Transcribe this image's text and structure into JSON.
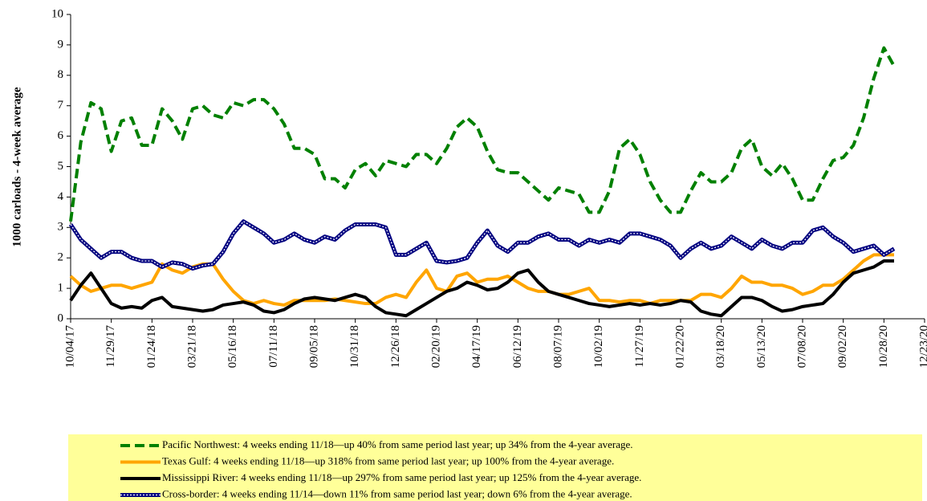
{
  "chart_data": {
    "type": "line",
    "y_label": "1000 carloads - 4-week average",
    "categories": [
      "10/04/17",
      null,
      null,
      null,
      "11/29/17",
      null,
      null,
      null,
      "01/24/18",
      null,
      null,
      null,
      "03/21/18",
      null,
      null,
      null,
      "05/16/18",
      null,
      null,
      null,
      "07/11/18",
      null,
      null,
      null,
      "09/05/18",
      null,
      null,
      null,
      "10/31/18",
      null,
      null,
      null,
      "12/26/18",
      null,
      null,
      null,
      "02/20/19",
      null,
      null,
      null,
      "04/17/19",
      null,
      null,
      null,
      "06/12/19",
      null,
      null,
      null,
      "08/07/19",
      null,
      null,
      null,
      "10/02/19",
      null,
      null,
      null,
      "11/27/19",
      null,
      null,
      null,
      "01/22/20",
      null,
      null,
      null,
      "03/18/20",
      null,
      null,
      null,
      "05/13/20",
      null,
      null,
      null,
      "07/08/20",
      null,
      null,
      null,
      "09/02/20",
      null,
      null,
      null,
      "10/28/20",
      null,
      null,
      null,
      "12/23/20"
    ],
    "series": [
      {
        "name": "Pacific Northwest:  4 weeks ending 11/18—up 40% from same period last year; up 34% from the 4-year average.",
        "color": "#008000",
        "style": "dashed",
        "values": [
          3.2,
          5.8,
          7.1,
          6.9,
          5.5,
          6.5,
          6.6,
          5.7,
          5.7,
          6.9,
          6.5,
          5.9,
          6.9,
          7.0,
          6.7,
          6.6,
          7.1,
          7.0,
          7.2,
          7.2,
          6.9,
          6.4,
          5.6,
          5.6,
          5.4,
          4.6,
          4.6,
          4.3,
          4.9,
          5.1,
          4.7,
          5.2,
          5.1,
          5.0,
          5.4,
          5.4,
          5.1,
          5.6,
          6.3,
          6.6,
          6.3,
          5.5,
          4.9,
          4.8,
          4.8,
          4.5,
          4.2,
          3.9,
          4.3,
          4.2,
          4.1,
          3.5,
          3.5,
          4.2,
          5.6,
          5.9,
          5.4,
          4.5,
          3.9,
          3.5,
          3.5,
          4.2,
          4.8,
          4.5,
          4.5,
          4.8,
          5.6,
          5.9,
          5.0,
          4.7,
          5.1,
          4.6,
          3.9,
          3.9,
          4.6,
          5.2,
          5.3,
          5.7,
          6.6,
          7.9,
          8.9,
          8.3,
          null,
          null,
          null
        ]
      },
      {
        "name": "Texas Gulf:  4 weeks ending 11/18—up 318% from same period last year; up 100% from the 4-year average.",
        "color": "#ffa500",
        "style": "solid",
        "values": [
          1.4,
          1.1,
          0.9,
          1.0,
          1.1,
          1.1,
          1.0,
          1.1,
          1.2,
          1.8,
          1.6,
          1.5,
          1.7,
          1.8,
          1.8,
          1.3,
          0.9,
          0.6,
          0.5,
          0.6,
          0.5,
          0.45,
          0.6,
          0.6,
          0.6,
          0.6,
          0.65,
          0.6,
          0.55,
          0.5,
          0.5,
          0.7,
          0.8,
          0.7,
          1.2,
          1.6,
          1.0,
          0.9,
          1.4,
          1.5,
          1.2,
          1.3,
          1.3,
          1.4,
          1.2,
          1.0,
          0.9,
          0.9,
          0.8,
          0.8,
          0.9,
          1.0,
          0.6,
          0.6,
          0.55,
          0.6,
          0.6,
          0.5,
          0.6,
          0.6,
          0.6,
          0.6,
          0.8,
          0.8,
          0.7,
          1.0,
          1.4,
          1.2,
          1.2,
          1.1,
          1.1,
          1.0,
          0.8,
          0.9,
          1.1,
          1.1,
          1.3,
          1.6,
          1.9,
          2.1,
          2.1,
          2.1,
          null,
          null,
          null
        ]
      },
      {
        "name": "Mississippi River:  4 weeks ending 11/18—up 297% from same period last year; up 125% from the 4-year average.",
        "color": "#000000",
        "style": "solid",
        "values": [
          0.6,
          1.1,
          1.5,
          1.0,
          0.5,
          0.35,
          0.4,
          0.35,
          0.6,
          0.7,
          0.4,
          0.35,
          0.3,
          0.25,
          0.3,
          0.45,
          0.5,
          0.55,
          0.45,
          0.25,
          0.2,
          0.3,
          0.5,
          0.65,
          0.7,
          0.65,
          0.6,
          0.7,
          0.8,
          0.7,
          0.4,
          0.2,
          0.15,
          0.1,
          0.3,
          0.5,
          0.7,
          0.9,
          1.0,
          1.2,
          1.1,
          0.95,
          1.0,
          1.2,
          1.5,
          1.6,
          1.2,
          0.9,
          0.8,
          0.7,
          0.6,
          0.5,
          0.45,
          0.4,
          0.45,
          0.5,
          0.45,
          0.5,
          0.45,
          0.5,
          0.6,
          0.55,
          0.25,
          0.15,
          0.1,
          0.4,
          0.7,
          0.7,
          0.6,
          0.4,
          0.25,
          0.3,
          0.4,
          0.45,
          0.5,
          0.8,
          1.2,
          1.5,
          1.6,
          1.7,
          1.9,
          1.9,
          null,
          null,
          null
        ]
      },
      {
        "name": "Cross-border:  4 weeks ending 11/14—down 11% from same period last year; down 6% from the 4-year average.",
        "color": "#000080",
        "style": "double-dotted",
        "values": [
          3.1,
          2.6,
          2.3,
          2.0,
          2.2,
          2.2,
          2.0,
          1.9,
          1.9,
          1.7,
          1.85,
          1.8,
          1.65,
          1.75,
          1.8,
          2.2,
          2.8,
          3.2,
          3.0,
          2.8,
          2.5,
          2.6,
          2.8,
          2.6,
          2.5,
          2.7,
          2.6,
          2.9,
          3.1,
          3.1,
          3.1,
          3.0,
          2.1,
          2.1,
          2.3,
          2.5,
          1.9,
          1.85,
          1.9,
          2.0,
          2.5,
          2.9,
          2.4,
          2.2,
          2.5,
          2.5,
          2.7,
          2.8,
          2.6,
          2.6,
          2.4,
          2.6,
          2.5,
          2.6,
          2.5,
          2.8,
          2.8,
          2.7,
          2.6,
          2.4,
          2.0,
          2.3,
          2.5,
          2.3,
          2.4,
          2.7,
          2.5,
          2.3,
          2.6,
          2.4,
          2.3,
          2.5,
          2.5,
          2.9,
          3.0,
          2.7,
          2.5,
          2.2,
          2.3,
          2.4,
          2.1,
          2.3,
          null,
          null,
          null
        ]
      }
    ],
    "ylim": [
      0,
      10
    ],
    "yticks": [
      0,
      1,
      2,
      3,
      4,
      5,
      6,
      7,
      8,
      9,
      10
    ],
    "grid": false,
    "legend_position": "bottom",
    "legend_background": "#ffff99"
  }
}
